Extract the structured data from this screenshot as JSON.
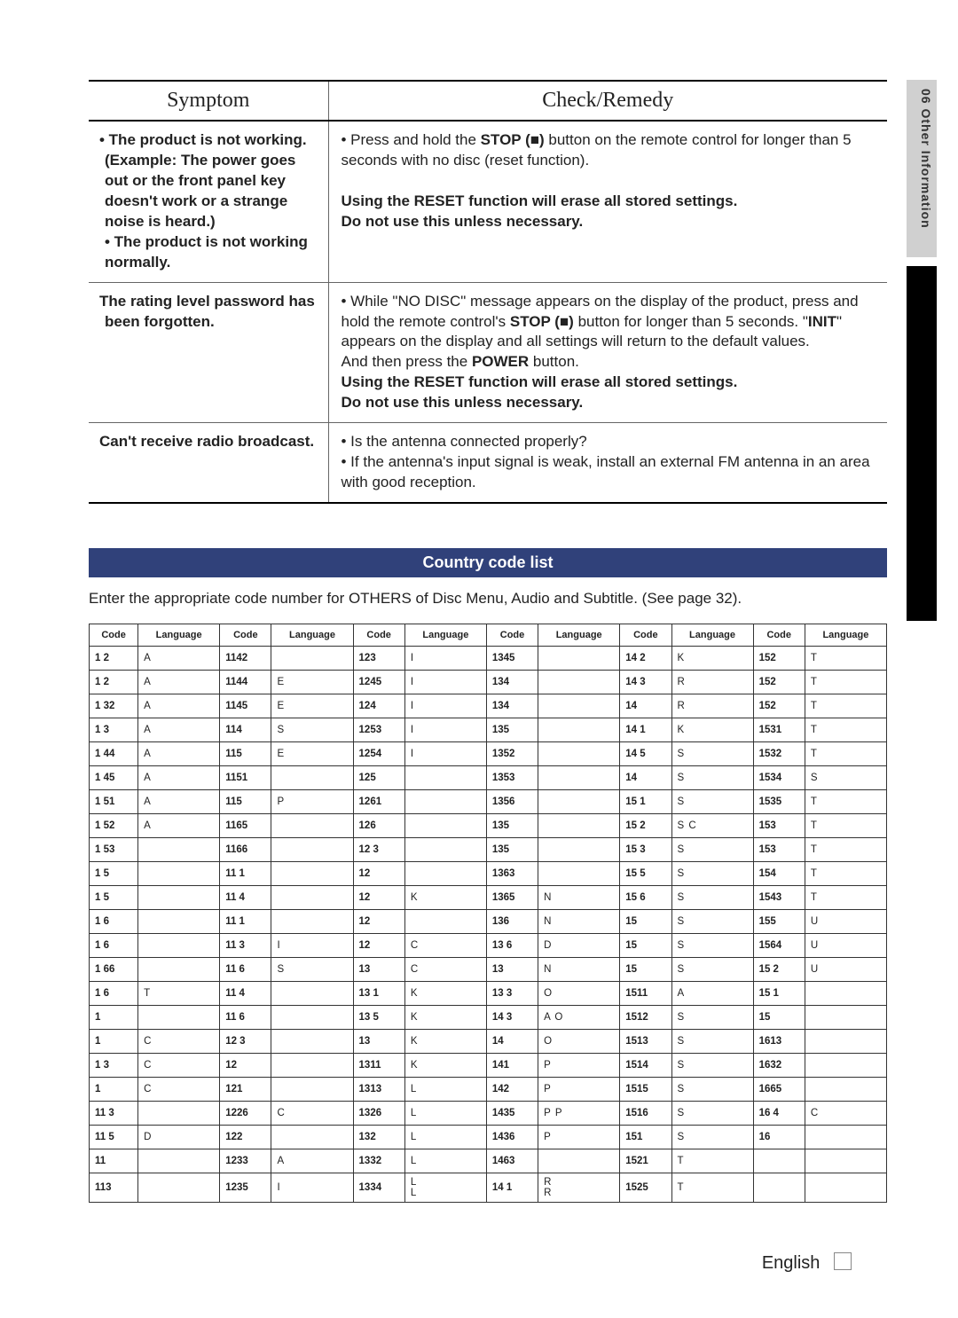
{
  "sideTab": "06  Other Information",
  "troubleshoot": {
    "headers": [
      "Symptom",
      "Check/Remedy"
    ],
    "rows": [
      {
        "symptom": "• The product is not working.\n(Example: The power goes out or the front panel key doesn't work or a strange noise is heard.)\n• The product is not working normally.",
        "remedy": "• Press and hold the STOP (■) button on the remote control for longer than 5 seconds with no disc (reset function).\n\nUsing the RESET function will erase all stored settings.\nDo not use this unless necessary."
      },
      {
        "symptom": "The rating level password has been forgotten.",
        "remedy": "• While \"NO DISC\" message appears on the display of the product, press and hold the remote control's STOP (■) button for longer than 5 seconds. \"INIT\" appears on the display and all settings will return to the default values.\nAnd then press the POWER button.\nUsing the RESET function will erase all stored settings.\nDo not use this unless necessary."
      },
      {
        "symptom": "Can't receive radio broadcast.",
        "remedy": "• Is the antenna connected properly?\n• If the antenna's input signal is weak, install an external FM antenna in an area with good reception."
      }
    ]
  },
  "countryCode": {
    "heading": "Country code list",
    "intro": "Enter the appropriate code number for OTHERS of Disc Menu, Audio and Subtitle. (See page 32).",
    "headers": [
      "Code",
      "Language",
      "Code",
      "Language",
      "Code",
      "Language",
      "Code",
      "Language",
      "Code",
      "Language",
      "Code",
      "Language"
    ],
    "rows": [
      [
        "1 2",
        "A",
        "1142",
        "",
        "123",
        "I",
        "1345",
        "",
        "14 2",
        "K",
        "152",
        "T"
      ],
      [
        "1 2",
        "A",
        "1144",
        "E",
        "1245",
        "I",
        "134",
        "",
        "14 3",
        "R",
        "152",
        "T"
      ],
      [
        "1 32",
        "A",
        "1145",
        "E",
        "124",
        "I",
        "134",
        "",
        "14",
        "R",
        "152",
        "T"
      ],
      [
        "1 3",
        "A",
        "114",
        "S",
        "1253",
        "I",
        "135",
        "",
        "14 1",
        "K",
        "1531",
        "T"
      ],
      [
        "1 44",
        "A",
        "115",
        "E",
        "1254",
        "I",
        "1352",
        "",
        "14 5",
        "S",
        "1532",
        "T"
      ],
      [
        "1 45",
        "A",
        "1151",
        "",
        "125",
        "",
        "1353",
        "",
        "14",
        "S",
        "1534",
        "S"
      ],
      [
        "1 51",
        "A",
        "115",
        "P",
        "1261",
        "",
        "1356",
        "",
        "15 1",
        "S",
        "1535",
        "T"
      ],
      [
        "1 52",
        "A",
        "1165",
        "",
        "126",
        "",
        "135",
        "",
        "15 2",
        "S    C",
        "153",
        "T"
      ],
      [
        "1 53",
        "",
        "1166",
        "",
        "12 3",
        "",
        "135",
        "",
        "15 3",
        "S",
        "153",
        "T"
      ],
      [
        "1 5",
        "",
        "11 1",
        "",
        "12",
        "",
        "1363",
        "",
        "15 5",
        "S",
        "154",
        "T"
      ],
      [
        "1 5",
        "",
        "11 4",
        "",
        "12",
        "K",
        "1365",
        "N",
        "15 6",
        "S",
        "1543",
        "T"
      ],
      [
        "1 6",
        "",
        "11 1",
        "",
        "12",
        "",
        "136",
        "N",
        "15",
        "S",
        "155",
        "U"
      ],
      [
        "1 6",
        "",
        "11 3",
        "I",
        "12",
        "C",
        "13 6",
        "D",
        "15",
        "S",
        "1564",
        "U"
      ],
      [
        "1 66",
        "",
        "11 6",
        "S",
        "13",
        "C",
        "13",
        "N",
        "15",
        "S",
        "15 2",
        "U"
      ],
      [
        "1 6",
        "T",
        "11 4",
        "",
        "13 1",
        "K",
        "13 3",
        "O",
        "1511",
        "A",
        "15 1",
        ""
      ],
      [
        "1",
        "",
        "11 6",
        "",
        "13 5",
        "K",
        "14 3",
        "A    O",
        "1512",
        "S",
        "15",
        ""
      ],
      [
        "1",
        "C",
        "12 3",
        "",
        "13",
        "K",
        "14",
        "O",
        "1513",
        "S",
        "1613",
        ""
      ],
      [
        "1  3",
        "C",
        "12",
        "",
        "1311",
        "K",
        "141",
        "P",
        "1514",
        "S",
        "1632",
        ""
      ],
      [
        "1",
        "C",
        "121",
        "",
        "1313",
        "L",
        "142",
        "P",
        "1515",
        "S",
        "1665",
        ""
      ],
      [
        "11 3",
        "",
        "1226",
        "C",
        "1326",
        "L",
        "1435",
        "P    P",
        "1516",
        "S",
        "16 4",
        "C"
      ],
      [
        "11 5",
        "D",
        "122",
        "",
        "132",
        "L",
        "1436",
        "P",
        "151",
        "S",
        "16",
        ""
      ],
      [
        "11",
        "",
        "1233",
        "A",
        "1332",
        "L",
        "1463",
        "",
        "1521",
        "T",
        "",
        ""
      ],
      [
        "113",
        "",
        "1235",
        "I",
        "1334",
        "L\nL",
        "14 1",
        "R\nR",
        "1525",
        "T",
        "",
        ""
      ]
    ]
  },
  "footer": "English"
}
